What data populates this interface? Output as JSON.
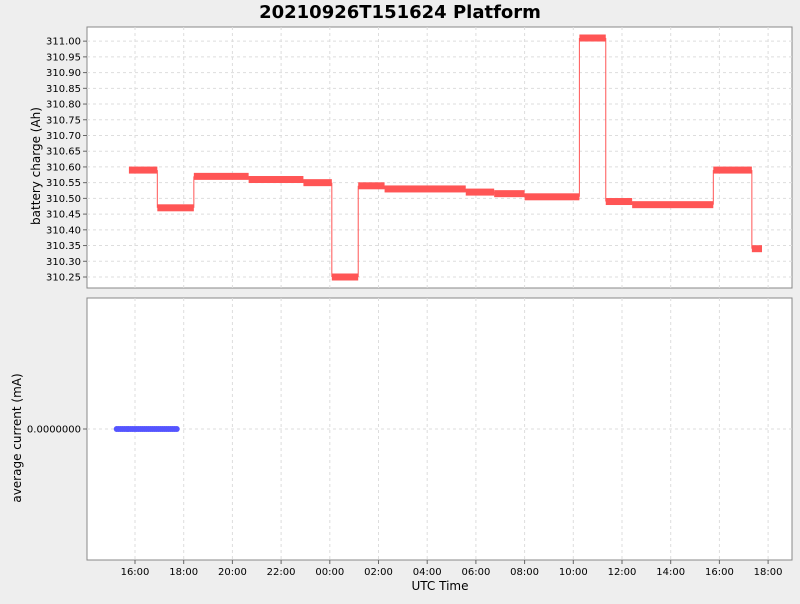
{
  "chart_data": [
    {
      "type": "line",
      "title": "20210926T151624 Platform",
      "ylabel": "battery charge (Ah)",
      "xlabel": "",
      "ylim": [
        310.215,
        311.045
      ],
      "grid": true,
      "legend": "none",
      "x_ticks": [
        "16:00",
        "18:00",
        "20:00",
        "22:00",
        "00:00",
        "02:00",
        "04:00",
        "06:00",
        "08:00",
        "10:00",
        "12:00",
        "14:00",
        "16:00",
        "18:00"
      ],
      "y_ticks": [
        "310.25",
        "310.30",
        "310.35",
        "310.40",
        "310.45",
        "310.50",
        "310.55",
        "310.60",
        "310.65",
        "310.70",
        "310.75",
        "310.80",
        "310.85",
        "310.90",
        "310.95",
        "311.00"
      ],
      "series": [
        {
          "color": "#ff5555",
          "segments": [
            {
              "x_start": "15:45",
              "x_end": "16:55",
              "y": 310.59
            },
            {
              "x_start": "16:55",
              "x_end": "18:25",
              "y": 310.47
            },
            {
              "x_start": "18:25",
              "x_end": "20:40",
              "y": 310.57
            },
            {
              "x_start": "20:40",
              "x_end": "22:55",
              "y": 310.56
            },
            {
              "x_start": "22:55",
              "x_end": "00:05",
              "y": 310.55
            },
            {
              "x_start": "00:05",
              "x_end": "01:10",
              "y": 310.25
            },
            {
              "x_start": "01:10",
              "x_end": "02:15",
              "y": 310.54
            },
            {
              "x_start": "02:15",
              "x_end": "05:35",
              "y": 310.53
            },
            {
              "x_start": "05:35",
              "x_end": "06:45",
              "y": 310.52
            },
            {
              "x_start": "06:45",
              "x_end": "08:00",
              "y": 310.515
            },
            {
              "x_start": "08:00",
              "x_end": "10:15",
              "y": 310.505
            },
            {
              "x_start": "10:15",
              "x_end": "11:20",
              "y": 311.01
            },
            {
              "x_start": "11:20",
              "x_end": "12:25",
              "y": 310.49
            },
            {
              "x_start": "12:25",
              "x_end": "15:45",
              "y": 310.48
            },
            {
              "x_start": "15:45",
              "x_end": "17:20",
              "y": 310.59
            },
            {
              "x_start": "17:20",
              "x_end": "17:45",
              "y": 310.34
            }
          ]
        }
      ]
    },
    {
      "type": "scatter",
      "title": "",
      "ylabel": "average current (mA)",
      "xlabel": "UTC Time",
      "grid": true,
      "legend": "none",
      "x_ticks": [
        "16:00",
        "18:00",
        "20:00",
        "22:00",
        "00:00",
        "02:00",
        "04:00",
        "06:00",
        "08:00",
        "10:00",
        "12:00",
        "14:00",
        "16:00",
        "18:00"
      ],
      "y_ticks": [
        "0.0000000"
      ],
      "series": [
        {
          "color": "#5555ff",
          "x_start": "15:15",
          "x_end": "17:45",
          "y": 0.0
        }
      ]
    }
  ]
}
